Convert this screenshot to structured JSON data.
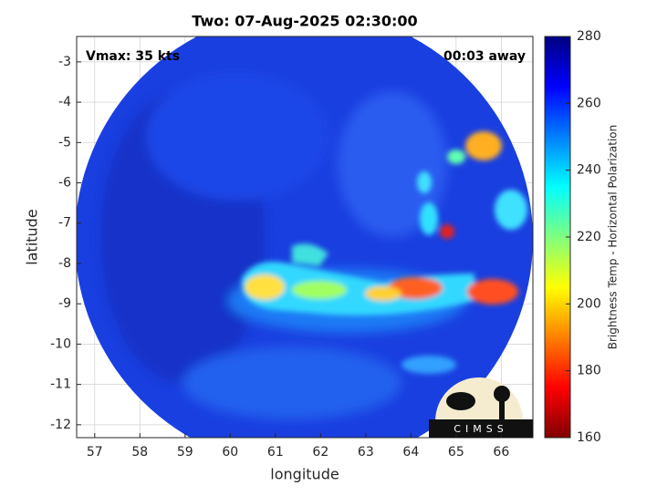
{
  "chart_data": {
    "type": "image",
    "title": "Two: 07-Aug-2025 02:30:00",
    "annotations": [
      "Vmax: 35 kts",
      "00:03 away"
    ],
    "xlabel": "longitude",
    "ylabel": "latitude",
    "xlim": [
      56.6,
      66.7
    ],
    "xticks": [
      57,
      58,
      59,
      60,
      61,
      62,
      63,
      64,
      65,
      66
    ],
    "ylim": [
      -12.32,
      -2.37
    ],
    "yticks": [
      -3,
      -4,
      -5,
      -6,
      -7,
      -8,
      -9,
      -10,
      -11,
      -12
    ],
    "grid": true,
    "colorbar": {
      "label": "Brightness Temp - Horizontal Polarization",
      "lim": [
        160,
        280
      ],
      "ticks": [
        160,
        180,
        200,
        220,
        240,
        260,
        280
      ]
    },
    "logo_text": "CIMSS"
  }
}
